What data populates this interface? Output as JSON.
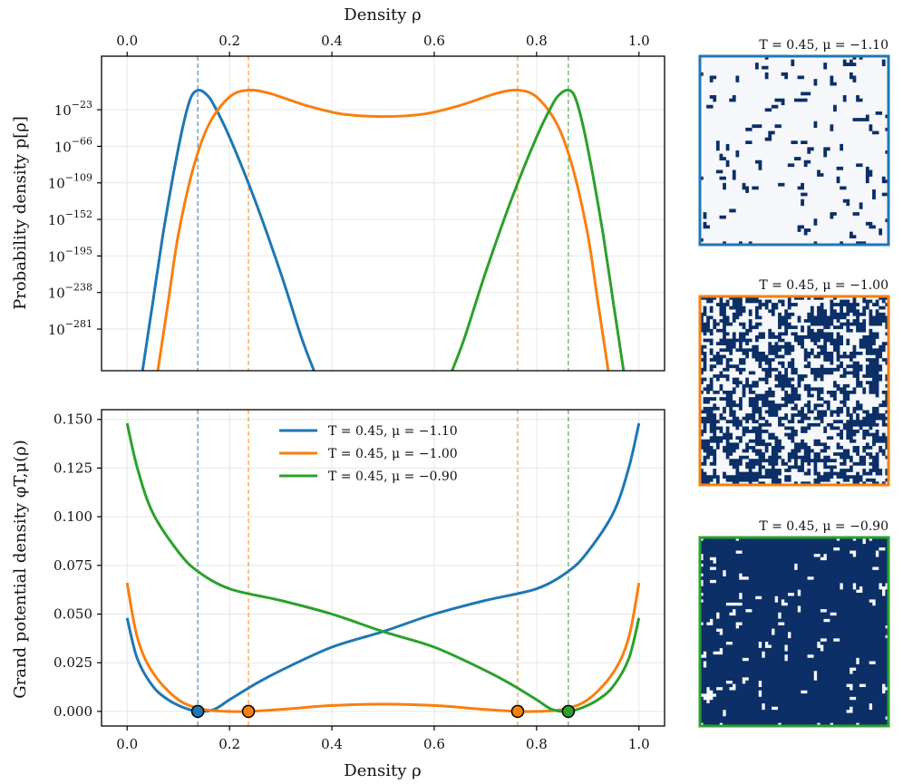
{
  "chart_data": [
    {
      "type": "line",
      "yscale": "log",
      "xlabel_top": "Density ρ",
      "ylabel": "Probability density p[ρ]",
      "xlim": [
        -0.05,
        1.05
      ],
      "ylim_log10": [
        -330,
        40
      ],
      "x_ticks": [
        "0.0",
        "0.2",
        "0.4",
        "0.6",
        "0.8",
        "1.0"
      ],
      "y_ticks": [
        {
          "exp": -23,
          "label": "-23"
        },
        {
          "exp": -66,
          "label": "-66"
        },
        {
          "exp": -109,
          "label": "-109"
        },
        {
          "exp": -152,
          "label": "-152"
        },
        {
          "exp": -195,
          "label": "-195"
        },
        {
          "exp": -238,
          "label": "-238"
        },
        {
          "exp": -281,
          "label": "-281"
        }
      ],
      "grid": true,
      "series": [
        {
          "color": "#1f77b4",
          "log10_p": [
            [
              0.03,
              -330
            ],
            [
              0.05,
              -250
            ],
            [
              0.07,
              -170
            ],
            [
              0.09,
              -100
            ],
            [
              0.11,
              -40
            ],
            [
              0.125,
              -8
            ],
            [
              0.14,
              0
            ],
            [
              0.155,
              -5
            ],
            [
              0.17,
              -18
            ],
            [
              0.2,
              -55
            ],
            [
              0.25,
              -130
            ],
            [
              0.3,
              -215
            ],
            [
              0.34,
              -290
            ],
            [
              0.365,
              -330
            ]
          ]
        },
        {
          "color": "#f97f0e",
          "log10_p": [
            [
              0.06,
              -330
            ],
            [
              0.08,
              -250
            ],
            [
              0.1,
              -170
            ],
            [
              0.13,
              -90
            ],
            [
              0.16,
              -40
            ],
            [
              0.2,
              -8
            ],
            [
              0.237,
              0
            ],
            [
              0.28,
              -4
            ],
            [
              0.35,
              -18
            ],
            [
              0.42,
              -28
            ],
            [
              0.5,
              -31
            ],
            [
              0.58,
              -28
            ],
            [
              0.65,
              -18
            ],
            [
              0.72,
              -4
            ],
            [
              0.763,
              0
            ],
            [
              0.8,
              -8
            ],
            [
              0.84,
              -40
            ],
            [
              0.87,
              -90
            ],
            [
              0.9,
              -170
            ],
            [
              0.92,
              -250
            ],
            [
              0.94,
              -330
            ]
          ]
        },
        {
          "color": "#2ca02c",
          "log10_p": [
            [
              0.635,
              -330
            ],
            [
              0.66,
              -290
            ],
            [
              0.7,
              -215
            ],
            [
              0.75,
              -130
            ],
            [
              0.8,
              -55
            ],
            [
              0.83,
              -18
            ],
            [
              0.845,
              -5
            ],
            [
              0.862,
              0
            ],
            [
              0.875,
              -8
            ],
            [
              0.89,
              -40
            ],
            [
              0.91,
              -100
            ],
            [
              0.93,
              -170
            ],
            [
              0.95,
              -250
            ],
            [
              0.97,
              -330
            ]
          ]
        }
      ],
      "vlines": [
        {
          "x": 0.138,
          "color": "#1f77b4"
        },
        {
          "x": 0.237,
          "color": "#f97f0e"
        },
        {
          "x": 0.763,
          "color": "#f97f0e"
        },
        {
          "x": 0.862,
          "color": "#2ca02c"
        }
      ]
    },
    {
      "type": "line",
      "xlabel": "Density ρ",
      "ylabel": "Grand potential density φT,μ(ρ)",
      "xlim": [
        -0.05,
        1.05
      ],
      "ylim": [
        -0.0075,
        0.155
      ],
      "x_ticks": [
        "0.0",
        "0.2",
        "0.4",
        "0.6",
        "0.8",
        "1.0"
      ],
      "y_ticks": [
        "0.000",
        "0.025",
        "0.050",
        "0.075",
        "0.100",
        "0.125",
        "0.150"
      ],
      "grid": true,
      "legend_position": "upper-center",
      "series": [
        {
          "name": "T = 0.45, μ = −1.10",
          "color": "#1f77b4",
          "points": [
            [
              0,
              0.048
            ],
            [
              0.02,
              0.027
            ],
            [
              0.05,
              0.013
            ],
            [
              0.08,
              0.006
            ],
            [
              0.11,
              0.002
            ],
            [
              0.138,
              0
            ],
            [
              0.17,
              0.001
            ],
            [
              0.2,
              0.006
            ],
            [
              0.25,
              0.014
            ],
            [
              0.3,
              0.021
            ],
            [
              0.4,
              0.033
            ],
            [
              0.5,
              0.041
            ],
            [
              0.6,
              0.05
            ],
            [
              0.7,
              0.057
            ],
            [
              0.8,
              0.063
            ],
            [
              0.862,
              0.072
            ],
            [
              0.9,
              0.082
            ],
            [
              0.95,
              0.102
            ],
            [
              0.98,
              0.125
            ],
            [
              1.0,
              0.148
            ]
          ]
        },
        {
          "name": "T = 0.45, μ = −1.00",
          "color": "#f97f0e",
          "points": [
            [
              0,
              0.066
            ],
            [
              0.02,
              0.038
            ],
            [
              0.05,
              0.02
            ],
            [
              0.1,
              0.006
            ],
            [
              0.15,
              0.001
            ],
            [
              0.2,
              0
            ],
            [
              0.237,
              0
            ],
            [
              0.3,
              0.001
            ],
            [
              0.4,
              0.003
            ],
            [
              0.5,
              0.0037
            ],
            [
              0.6,
              0.003
            ],
            [
              0.7,
              0.001
            ],
            [
              0.763,
              0
            ],
            [
              0.8,
              0
            ],
            [
              0.85,
              0.001
            ],
            [
              0.9,
              0.006
            ],
            [
              0.95,
              0.02
            ],
            [
              0.98,
              0.038
            ],
            [
              1.0,
              0.066
            ]
          ]
        },
        {
          "name": "T = 0.45, μ = −0.90",
          "color": "#2ca02c",
          "points": [
            [
              0,
              0.148
            ],
            [
              0.02,
              0.125
            ],
            [
              0.05,
              0.102
            ],
            [
              0.1,
              0.082
            ],
            [
              0.138,
              0.072
            ],
            [
              0.2,
              0.063
            ],
            [
              0.3,
              0.057
            ],
            [
              0.4,
              0.05
            ],
            [
              0.5,
              0.041
            ],
            [
              0.6,
              0.033
            ],
            [
              0.7,
              0.021
            ],
            [
              0.75,
              0.014
            ],
            [
              0.8,
              0.006
            ],
            [
              0.83,
              0.001
            ],
            [
              0.862,
              0
            ],
            [
              0.89,
              0.002
            ],
            [
              0.92,
              0.006
            ],
            [
              0.95,
              0.013
            ],
            [
              0.98,
              0.027
            ],
            [
              1.0,
              0.048
            ]
          ]
        }
      ],
      "vlines": [
        {
          "x": 0.138,
          "color": "#1f77b4"
        },
        {
          "x": 0.237,
          "color": "#f97f0e"
        },
        {
          "x": 0.763,
          "color": "#f97f0e"
        },
        {
          "x": 0.862,
          "color": "#2ca02c"
        }
      ],
      "markers": [
        {
          "x": 0.138,
          "y": 0,
          "color": "#1f77b4"
        },
        {
          "x": 0.237,
          "y": 0,
          "color": "#f97f0e"
        },
        {
          "x": 0.763,
          "y": 0,
          "color": "#f97f0e"
        },
        {
          "x": 0.862,
          "y": 0,
          "color": "#2ca02c"
        }
      ]
    }
  ],
  "snapshots": [
    {
      "title": "T = 0.45, μ = −1.10",
      "frame_color": "#1f77b4",
      "fill_fraction": 0.14
    },
    {
      "title": "T = 0.45, μ = −1.00",
      "frame_color": "#f97f0e",
      "fill_fraction": 0.5
    },
    {
      "title": "T = 0.45, μ = −0.90",
      "frame_color": "#2ca02c",
      "fill_fraction": 0.86
    }
  ],
  "colors": {
    "particle": "#0b2f66",
    "empty": "#f5f7fb"
  }
}
